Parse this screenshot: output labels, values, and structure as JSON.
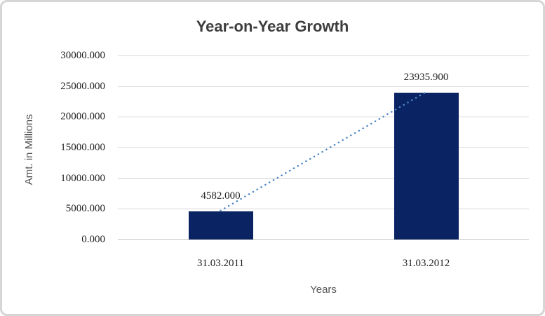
{
  "window": {
    "background": "#ffffff",
    "frame_border_color": "#d6d6d6"
  },
  "chart_data": {
    "type": "bar",
    "title": "Year-on-Year Growth",
    "xlabel": "Years",
    "ylabel": "Amt. in Millions",
    "categories": [
      "31.03.2011",
      "31.03.2012"
    ],
    "values": [
      4582.0,
      23935.9
    ],
    "data_labels": [
      "4582.000",
      "23935.900"
    ],
    "ylim": [
      0,
      30000
    ],
    "ytick_interval": 5000,
    "ytick_labels": [
      "0.000",
      "5000.000",
      "10000.000",
      "15000.000",
      "20000.000",
      "25000.000",
      "30000.000"
    ],
    "grid": true,
    "legend_position": "none",
    "bar_color": "#0a2463",
    "gridline_color": "#d9d9d9",
    "axis_line_color": "#c3c3c3",
    "title_color": "#3d3d3d",
    "tick_label_color": "#1f1f1f",
    "axis_title_color": "#555555",
    "trendline": {
      "style": "dotted",
      "color": "#4d87c7",
      "connects": "bar tops, first to last category"
    }
  }
}
